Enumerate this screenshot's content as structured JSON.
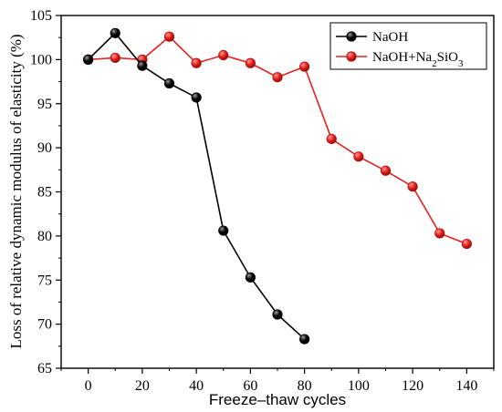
{
  "chart_data": {
    "type": "line",
    "xlabel": "Freeze–thaw cycles",
    "ylabel": "Loss of relative dynamic modulus of elasticity (%)",
    "xlim": [
      -10,
      150
    ],
    "ylim": [
      65,
      105
    ],
    "xticks": [
      "0",
      "20",
      "40",
      "60",
      "80",
      "100",
      "120",
      "140"
    ],
    "yticks": [
      "65",
      "70",
      "75",
      "80",
      "85",
      "90",
      "95",
      "100",
      "105"
    ],
    "legend_position": "top-right",
    "grid": false,
    "series": [
      {
        "name": "NaOH",
        "legend_main": "NaOH",
        "legend_sub": "",
        "legend_tail": "",
        "color": "#000000",
        "x": [
          0,
          10,
          20,
          30,
          40,
          50,
          60,
          70,
          80
        ],
        "y": [
          100.0,
          103.0,
          99.3,
          97.3,
          95.7,
          80.6,
          75.3,
          71.1,
          68.3
        ]
      },
      {
        "name": "NaOH+Na2SiO3",
        "legend_main": "NaOH+Na",
        "legend_sub": "2",
        "legend_tail": "SiO",
        "legend_sub2": "3",
        "color": "#e8201c",
        "x": [
          0,
          10,
          20,
          30,
          40,
          50,
          60,
          70,
          80,
          90,
          100,
          110,
          120,
          130,
          140
        ],
        "y": [
          100.0,
          100.2,
          100.0,
          102.6,
          99.6,
          100.5,
          99.6,
          98.0,
          99.2,
          91.0,
          89.0,
          87.4,
          85.6,
          80.3,
          79.1
        ]
      }
    ]
  }
}
